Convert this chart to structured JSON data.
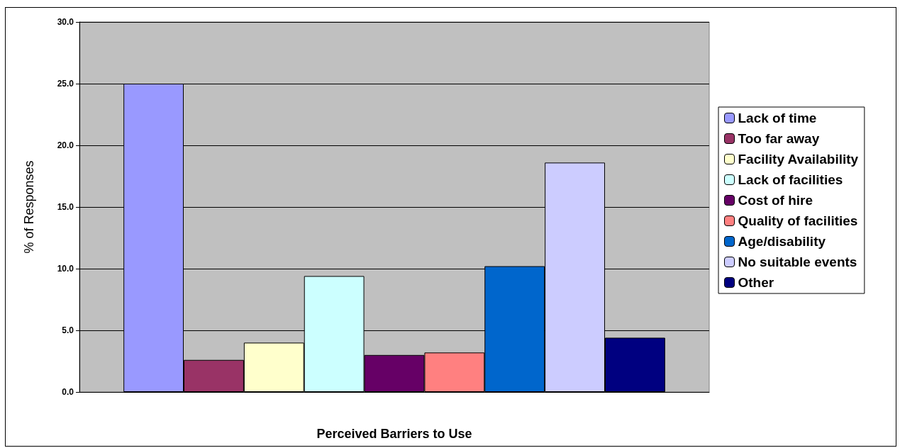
{
  "chart_data": {
    "type": "bar",
    "xlabel": "Perceived Barriers to Use",
    "ylabel": "% of Responses",
    "categories": [
      null
    ],
    "series": [
      {
        "name": "Lack of time",
        "color": "#9999ff",
        "values": [
          25.0
        ]
      },
      {
        "name": "Too far away",
        "color": "#993366",
        "values": [
          2.6
        ]
      },
      {
        "name": "Facility Availability",
        "color": "#ffffcc",
        "values": [
          4.0
        ]
      },
      {
        "name": "Lack of facilities",
        "color": "#ccffff",
        "values": [
          9.4
        ]
      },
      {
        "name": "Cost of hire",
        "color": "#660066",
        "values": [
          3.0
        ]
      },
      {
        "name": "Quality of facilities",
        "color": "#ff8080",
        "values": [
          3.2
        ]
      },
      {
        "name": "Age/disability",
        "color": "#0066cc",
        "values": [
          10.2
        ]
      },
      {
        "name": "No suitable events",
        "color": "#ccccff",
        "values": [
          18.6
        ]
      },
      {
        "name": "Other",
        "color": "#000080",
        "values": [
          4.4
        ]
      }
    ],
    "ylim": [
      0,
      30
    ],
    "yticks": [
      {
        "value": 0,
        "label": "0.0"
      },
      {
        "value": 5,
        "label": "5.0"
      },
      {
        "value": 10,
        "label": "10.0"
      },
      {
        "value": 15,
        "label": "15.0"
      },
      {
        "value": 20,
        "label": "20.0"
      },
      {
        "value": 25,
        "label": "25.0"
      },
      {
        "value": 30,
        "label": "30.0"
      }
    ],
    "grid": "y",
    "legend": "right"
  }
}
